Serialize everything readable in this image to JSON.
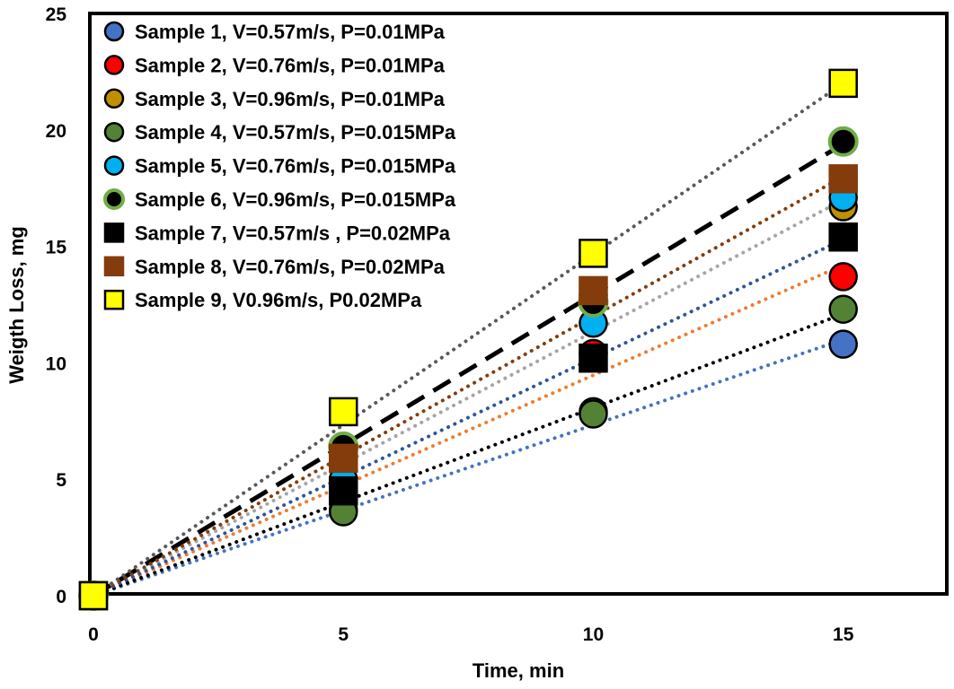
{
  "chart_data": {
    "type": "scatter",
    "title": "",
    "xlabel": "Time, min",
    "ylabel": "Weigth Loss, mg",
    "xlim": [
      0,
      17
    ],
    "ylim": [
      0,
      25
    ],
    "xticks": [
      0,
      5,
      10,
      15
    ],
    "yticks": [
      0,
      5,
      10,
      15,
      20,
      25
    ],
    "grid": false,
    "legend_position": "top-left",
    "x": [
      0,
      5,
      10,
      15
    ],
    "series": [
      {
        "name": "Sample 1, V=0.57m/s, P=0.01MPa",
        "values": [
          0,
          3.7,
          7.9,
          10.8
        ],
        "marker": "circle",
        "color": "#4472c4",
        "edge": "#000000",
        "trend_end": 11.0,
        "trend_color": "#4472c4",
        "trend_style": "dotted"
      },
      {
        "name": "Sample 2, V=0.76m/s, P=0.01MPa",
        "values": [
          0,
          4.9,
          10.4,
          13.7
        ],
        "marker": "circle",
        "color": "#ff0000",
        "edge": "#000000",
        "trend_end": 14.2,
        "trend_color": "#ed7d31",
        "trend_style": "dotted"
      },
      {
        "name": "Sample 3, V=0.96m/s, P=0.01MPa",
        "values": [
          0,
          5.8,
          12.9,
          16.7
        ],
        "marker": "circle",
        "color": "#bf9000",
        "edge": "#000000",
        "trend_end": 17.0,
        "trend_color": "#a5a5a5",
        "trend_style": "dotted"
      },
      {
        "name": "Sample 4, V=0.57m/s, P=0.015MPa",
        "values": [
          0,
          3.6,
          7.8,
          12.3
        ],
        "marker": "circle",
        "color": "#548235",
        "edge": "#000000",
        "trend_end": 12.1,
        "trend_color": "#000000",
        "trend_style": "dotted"
      },
      {
        "name": "Sample 5, V=0.76m/s, P=0.015MPa",
        "values": [
          0,
          5.0,
          11.7,
          17.1
        ],
        "marker": "circle",
        "color": "#00b0f0",
        "edge": "#000000",
        "trend_end": 15.3,
        "trend_color": "#2f5597",
        "trend_style": "dotted"
      },
      {
        "name": "Sample 6, V=0.96m/s, P=0.015MPa",
        "values": [
          0,
          6.4,
          12.6,
          19.5
        ],
        "marker": "circle",
        "color": "#000000",
        "edge": "#70ad47",
        "trend_end": 19.4,
        "trend_color": "#000000",
        "trend_style": "dashed"
      },
      {
        "name": "Sample 7, V=0.57m/s , P=0.02MPa",
        "values": [
          0,
          4.5,
          10.2,
          15.4
        ],
        "marker": "square",
        "color": "#000000",
        "edge": "#000000",
        "trend_end": 15.3,
        "trend_color": "#2f5597",
        "trend_style": "none"
      },
      {
        "name": "Sample 8, V=0.76m/s, P=0.02MPa",
        "values": [
          0,
          5.9,
          13.1,
          17.9
        ],
        "marker": "square",
        "color": "#843c0c",
        "edge": "#843c0c",
        "trend_end": 18.0,
        "trend_color": "#843c0c",
        "trend_style": "dotted"
      },
      {
        "name": "Sample 9, V0.96m/s, P0.02MPa",
        "values": [
          0,
          7.9,
          14.7,
          22.0
        ],
        "marker": "square",
        "color": "#ffff00",
        "edge": "#000000",
        "trend_end": 22.0,
        "trend_color": "#595959",
        "trend_style": "dotted"
      }
    ]
  }
}
